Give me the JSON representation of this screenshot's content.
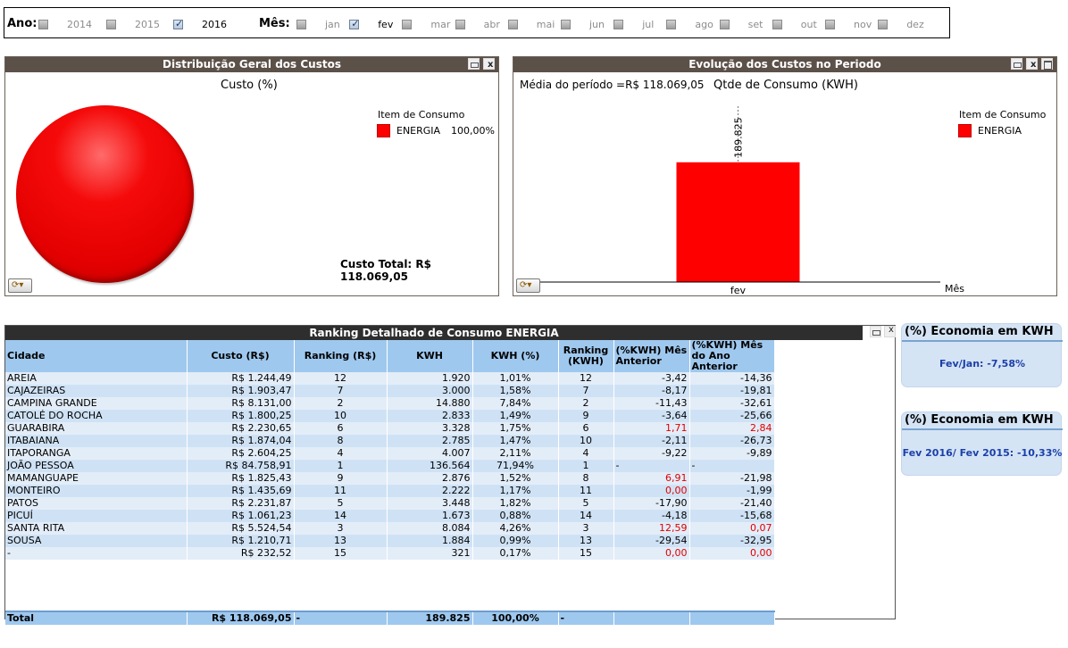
{
  "filters": {
    "year_label": "Ano:",
    "years": [
      {
        "label": "2014",
        "checked": false
      },
      {
        "label": "2015",
        "checked": false
      },
      {
        "label": "2016",
        "checked": true
      }
    ],
    "month_label": "Mês:",
    "months": [
      {
        "label": "jan",
        "checked": false
      },
      {
        "label": "fev",
        "checked": true
      },
      {
        "label": "mar",
        "checked": false
      },
      {
        "label": "abr",
        "checked": false
      },
      {
        "label": "mai",
        "checked": false
      },
      {
        "label": "jun",
        "checked": false
      },
      {
        "label": "jul",
        "checked": false
      },
      {
        "label": "ago",
        "checked": false
      },
      {
        "label": "set",
        "checked": false
      },
      {
        "label": "out",
        "checked": false
      },
      {
        "label": "nov",
        "checked": false
      },
      {
        "label": "dez",
        "checked": false
      }
    ]
  },
  "pie_panel": {
    "title": "Distribuição Geral dos Custos",
    "chart_title": "Custo (%)",
    "legend_title": "Item de Consumo",
    "legend_item": "ENERGIA",
    "legend_value": "100,00%",
    "total": "Custo Total: R$ 118.069,05"
  },
  "bar_panel": {
    "title": "Evolução dos Custos no Periodo",
    "average": "Média do período =R$ 118.069,05",
    "chart_title": "Qtde de Consumo (KWH)",
    "legend_title": "Item de Consumo",
    "legend_item": "ENERGIA",
    "value_label": "189.825",
    "x_tick": "fev",
    "xlabel": "Mês"
  },
  "chart_data": [
    {
      "type": "pie",
      "title": "Custo (%)",
      "categories": [
        "ENERGIA"
      ],
      "values": [
        100.0
      ],
      "legend_title": "Item de Consumo",
      "legend": "right",
      "colors": [
        "#ff0000"
      ]
    },
    {
      "type": "bar",
      "title": "Qtde de Consumo (KWH)",
      "categories": [
        "fev"
      ],
      "series": [
        {
          "name": "ENERGIA",
          "values": [
            189825
          ]
        }
      ],
      "xlabel": "Mês",
      "ylabel": "",
      "ylim": [
        0,
        290000
      ],
      "legend_title": "Item de Consumo",
      "legend": "right",
      "colors": [
        "#ff0000"
      ]
    }
  ],
  "ranking": {
    "title": "Ranking Detalhado de Consumo ENERGIA",
    "columns": [
      "Cidade",
      "Custo (R$)",
      "Ranking (R$)",
      "KWH",
      "KWH (%)",
      "Ranking (KWH)",
      "(%KWH) Mês Anterior",
      "(%KWH) Mês do Ano Anterior"
    ],
    "rows": [
      [
        "AREIA",
        "R$ 1.244,49",
        "12",
        "1.920",
        "1,01%",
        "12",
        "-3,42",
        "-14,36"
      ],
      [
        "CAJAZEIRAS",
        "R$ 1.903,47",
        "7",
        "3.000",
        "1,58%",
        "7",
        "-8,17",
        "-19,81"
      ],
      [
        "CAMPINA GRANDE",
        "R$ 8.131,00",
        "2",
        "14.880",
        "7,84%",
        "2",
        "-11,43",
        "-32,61"
      ],
      [
        "CATOLÉ DO ROCHA",
        "R$ 1.800,25",
        "10",
        "2.833",
        "1,49%",
        "9",
        "-3,64",
        "-25,66"
      ],
      [
        "GUARABIRA",
        "R$ 2.230,65",
        "6",
        "3.328",
        "1,75%",
        "6",
        "1,71",
        "2,84"
      ],
      [
        "ITABAIANA",
        "R$ 1.874,04",
        "8",
        "2.785",
        "1,47%",
        "10",
        "-2,11",
        "-26,73"
      ],
      [
        "ITAPORANGA",
        "R$ 2.604,25",
        "4",
        "4.007",
        "2,11%",
        "4",
        "-9,22",
        "-9,89"
      ],
      [
        "JOÃO PESSOA",
        "R$ 84.758,91",
        "1",
        "136.564",
        "71,94%",
        "1",
        "-",
        "-"
      ],
      [
        "MAMANGUAPE",
        "R$ 1.825,43",
        "9",
        "2.876",
        "1,52%",
        "8",
        "6,91",
        "-21,98"
      ],
      [
        "MONTEIRO",
        "R$ 1.435,69",
        "11",
        "2.222",
        "1,17%",
        "11",
        "0,00",
        "-1,99"
      ],
      [
        "PATOS",
        "R$ 2.231,87",
        "5",
        "3.448",
        "1,82%",
        "5",
        "-17,90",
        "-21,40"
      ],
      [
        "PICUÍ",
        "R$ 1.061,23",
        "14",
        "1.673",
        "0,88%",
        "14",
        "-4,18",
        "-15,68"
      ],
      [
        "SANTA RITA",
        "R$ 5.524,54",
        "3",
        "8.084",
        "4,26%",
        "3",
        "12,59",
        "0,07"
      ],
      [
        "SOUSA",
        "R$ 1.210,71",
        "13",
        "1.884",
        "0,99%",
        "13",
        "-29,54",
        "-32,95"
      ],
      [
        "-",
        "R$ 232,52",
        "15",
        "321",
        "0,17%",
        "15",
        "0,00",
        "0,00"
      ]
    ],
    "red_cells": [
      [
        4,
        6
      ],
      [
        4,
        7
      ],
      [
        8,
        6
      ],
      [
        9,
        6
      ],
      [
        12,
        6
      ],
      [
        12,
        7
      ],
      [
        14,
        6
      ],
      [
        14,
        7
      ]
    ],
    "total": [
      "Total",
      "R$ 118.069,05",
      "-",
      "189.825",
      "100,00%",
      "-",
      "",
      ""
    ]
  },
  "economy": [
    {
      "title": "(%) Economia em KWH",
      "value": "Fev/Jan: -7,58%"
    },
    {
      "title": "(%) Economia em KWH",
      "value": "Fev 2016/ Fev 2015: -10,33%"
    }
  ],
  "colors": {
    "series": "#ff0000",
    "panel_header": "#5c5149",
    "table_header": "#9fc8ee",
    "economy_value": "#1c3fa8"
  }
}
